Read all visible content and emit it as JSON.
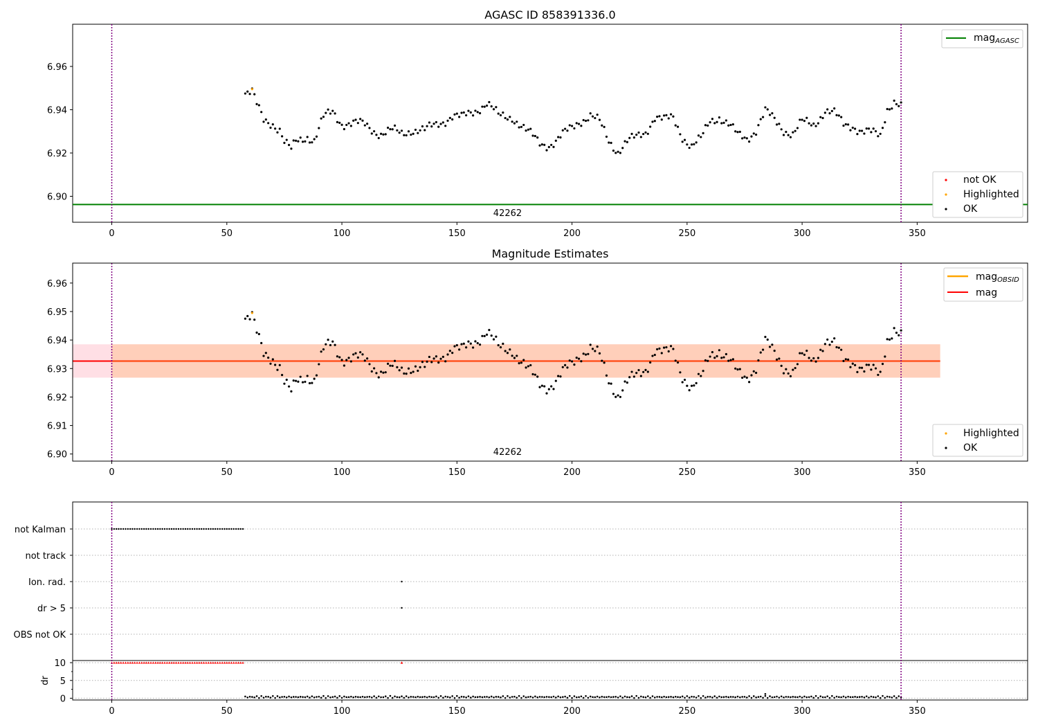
{
  "chart_data": [
    {
      "type": "scatter",
      "title": "AGASC ID 858391336.0",
      "xlim": [
        -17,
        398
      ],
      "ylim": [
        6.888,
        6.9795
      ],
      "xticks": [
        0,
        50,
        100,
        150,
        200,
        250,
        300,
        350
      ],
      "yticks": [
        6.9,
        6.92,
        6.94,
        6.96
      ],
      "yticks_labels": [
        "6.90",
        "6.92",
        "6.94",
        "6.96"
      ],
      "obsid_label": "42262",
      "obsid_label_x": 172,
      "vlines": [
        0,
        343
      ],
      "mag_agasc": 6.8962,
      "legend_top": {
        "label": "mag",
        "sub": "AGASC"
      },
      "legend_bottom": [
        "not OK",
        "Highlighted",
        "OK"
      ],
      "colors": {
        "ok": "#000000",
        "highlighted": "#ffa500",
        "not_ok": "#ff0000",
        "agasc_line": "#008000",
        "vline": "#800080"
      },
      "highlighted_points": [
        [
          61,
          6.9495
        ]
      ]
    },
    {
      "type": "scatter",
      "title": "Magnitude Estimates",
      "xlim": [
        -17,
        398
      ],
      "ylim": [
        6.8975,
        6.967
      ],
      "xticks": [
        0,
        50,
        100,
        150,
        200,
        250,
        300,
        350
      ],
      "yticks": [
        6.9,
        6.91,
        6.92,
        6.93,
        6.94,
        6.95,
        6.96
      ],
      "yticks_labels": [
        "6.90",
        "6.91",
        "6.92",
        "6.93",
        "6.94",
        "6.95",
        "6.96"
      ],
      "obsid_label": "42262",
      "obsid_label_x": 172,
      "vlines": [
        0,
        343
      ],
      "mag": 6.9326,
      "mag_band": [
        6.9268,
        6.9385
      ],
      "band_x_end": 360,
      "mag_obsid": 6.9326,
      "legend_top": [
        {
          "label": "mag",
          "sub": "OBSID"
        },
        {
          "label": "mag",
          "sub": ""
        }
      ],
      "legend_bottom": [
        "Highlighted",
        "OK"
      ],
      "colors": {
        "ok": "#000000",
        "highlighted": "#ffa500",
        "mag_line": "#ff0000",
        "obsid_line": "#ffa500",
        "band": "#ffc0cb",
        "band_inner": "#ffc8a8",
        "vline": "#800080"
      },
      "highlighted_points": [
        [
          61,
          6.9495
        ]
      ]
    },
    {
      "type": "scatter",
      "title": "",
      "xlim": [
        -17,
        398
      ],
      "xticks": [
        0,
        50,
        100,
        150,
        200,
        250,
        300,
        350
      ],
      "flag_categories": [
        "not Kalman",
        "not track",
        "Ion. rad.",
        "dr > 5",
        "OBS not OK"
      ],
      "flags": {
        "not Kalman": {
          "x_start": 0,
          "x_end": 57
        },
        "not track": {
          "x": []
        },
        "Ion. rad.": {
          "x": [
            126
          ]
        },
        "dr > 5": {
          "x": [
            126
          ]
        },
        "OBS not OK": {
          "x": []
        }
      },
      "dr": {
        "ylabel": "dr",
        "ylim": [
          -0.5,
          10.6
        ],
        "yticks": [
          0,
          5,
          10
        ],
        "clip_value": 10,
        "clipped_x_start": 0,
        "clipped_x_end": 57,
        "clipped_extra": [
          126
        ],
        "typical_value": 0.35,
        "outlier": [
          [
            284,
            1.2
          ]
        ]
      },
      "vlines": [
        0,
        343
      ]
    }
  ]
}
